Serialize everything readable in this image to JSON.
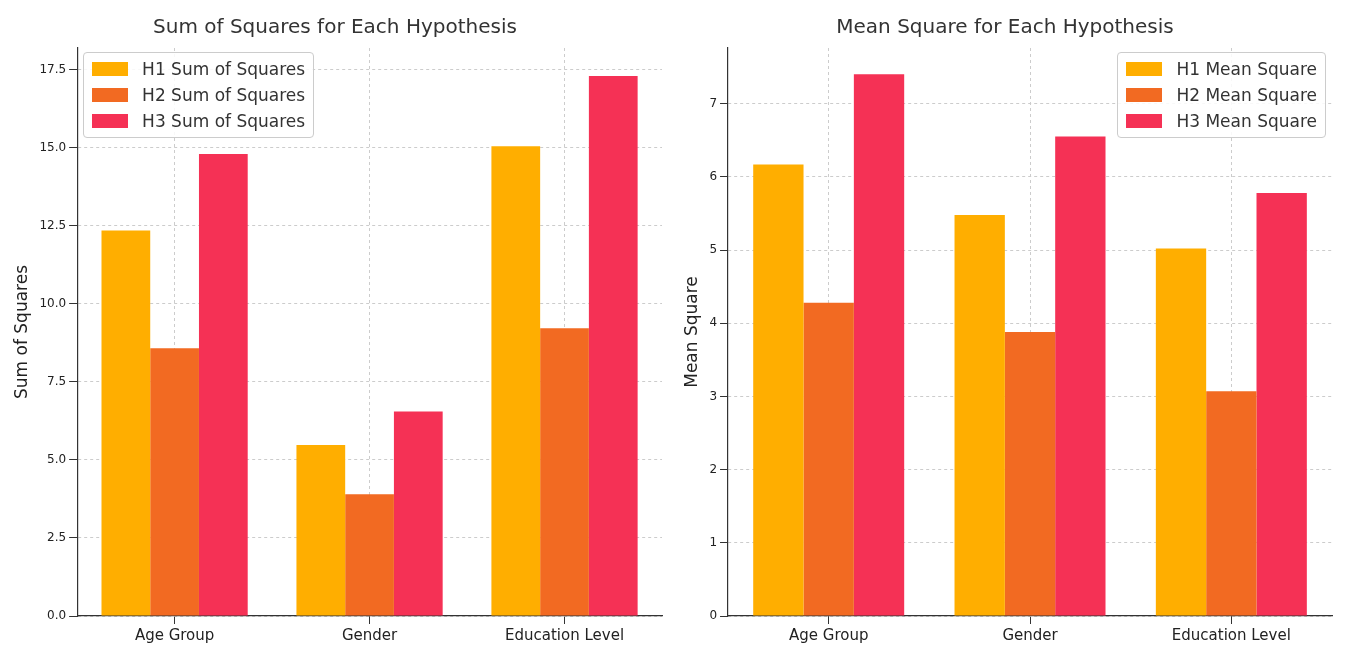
{
  "chart_data": [
    {
      "type": "bar",
      "title": "Sum of Squares for Each Hypothesis",
      "ylabel": "Sum of Squares",
      "categories": [
        "Age Group",
        "Gender",
        "Education Level"
      ],
      "series": [
        {
          "name": "H1 Sum of Squares",
          "color": "#ffae00",
          "values": [
            12.35,
            5.48,
            15.05
          ]
        },
        {
          "name": "H2 Sum of Squares",
          "color": "#f26a22",
          "values": [
            8.58,
            3.9,
            9.22
          ]
        },
        {
          "name": "H3 Sum of Squares",
          "color": "#f53155",
          "values": [
            14.8,
            6.55,
            17.3
          ]
        }
      ],
      "ylim": [
        0,
        18.2
      ],
      "yticks": [
        {
          "value": 0,
          "label": "0.0"
        },
        2.5,
        {
          "value": 5,
          "label": "5.0"
        },
        7.5,
        {
          "value": 10,
          "label": "10.0"
        },
        12.5,
        {
          "value": 15,
          "label": "15.0"
        },
        17.5
      ],
      "grid": true,
      "legend": "top left"
    },
    {
      "type": "bar",
      "title": "Mean Square for Each Hypothesis",
      "ylabel": "Mean Square",
      "categories": [
        "Age Group",
        "Gender",
        "Education Level"
      ],
      "series": [
        {
          "name": "H1 Mean Square",
          "color": "#ffae00",
          "values": [
            6.17,
            5.48,
            5.02
          ]
        },
        {
          "name": "H2 Mean Square",
          "color": "#f26a22",
          "values": [
            4.28,
            3.88,
            3.07
          ]
        },
        {
          "name": "H3 Mean Square",
          "color": "#f53155",
          "values": [
            7.4,
            6.55,
            5.78
          ]
        }
      ],
      "ylim": [
        0,
        7.76
      ],
      "yticks": [
        0,
        1,
        2,
        3,
        4,
        5,
        6,
        7
      ],
      "grid": true,
      "legend": "top right"
    }
  ]
}
